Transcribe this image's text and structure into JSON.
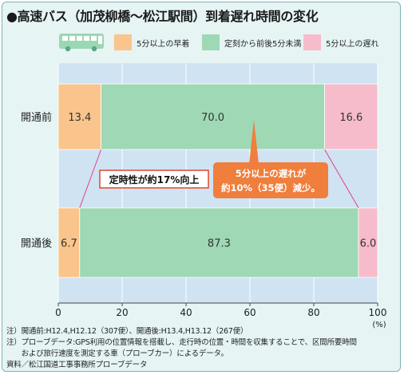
{
  "title": "●高速バス（加茂柳橋～松江駅間）到着遅れ時間の変化",
  "colors": {
    "early": "#f9c58c",
    "on_time": "#9fd8b4",
    "late": "#f7bccb",
    "plot_bg": "#cfe3f3",
    "callout": "#f07e3c",
    "bus": "#9ad8b3"
  },
  "legend": [
    {
      "label": "5分以上の早着",
      "color_key": "early"
    },
    {
      "label": "定刻から前後5分未満",
      "color_key": "on_time"
    },
    {
      "label": "5分以上の遅れ",
      "color_key": "late"
    }
  ],
  "chart_data": {
    "type": "bar",
    "orientation": "horizontal",
    "stacked": true,
    "categories": [
      "開通前",
      "開通後"
    ],
    "series": [
      {
        "name": "5分以上の早着",
        "values": [
          13.4,
          6.7
        ],
        "labels": [
          "13.4",
          "6.7"
        ]
      },
      {
        "name": "定刻から前後5分未満",
        "values": [
          70.0,
          87.3
        ],
        "labels": [
          "70.0",
          "87.3"
        ]
      },
      {
        "name": "5分以上の遅れ",
        "values": [
          16.6,
          6.0
        ],
        "labels": [
          "16.6",
          "6.0"
        ]
      }
    ],
    "xlim": [
      0,
      100
    ],
    "xticks": [
      0,
      20,
      40,
      60,
      80,
      100
    ],
    "xlabel": "(%)",
    "legend_position": "top",
    "annotations": {
      "improvement": "定時性が約17%向上",
      "delay_reduction": [
        "5分以上の遅れが",
        "約10%（35便）減少。"
      ]
    }
  },
  "notes": [
    "注）開通前:H12.4,H12.12（307便）、開通後:H13.4,H13.12（267便）",
    "注）プローブデータ:GPS利用の位置情報を搭載し、走行時の位置・時間を収集することで、区間所要時間",
    "　　および旅行速度を測定する車（プローブカー）によるデータ。",
    "資料／松江国道工事事務所プローブデータ"
  ]
}
